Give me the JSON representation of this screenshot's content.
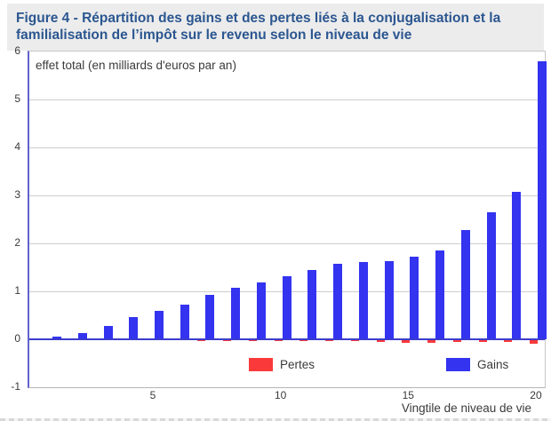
{
  "title": "Figure 4 - Répartition des gains et des pertes liés à la conjugalisation et la familialisation de l’impôt sur le revenu selon le niveau de vie",
  "chart_data": {
    "type": "bar",
    "annotation": "effet total (en milliards d'euros par an)",
    "xlabel": "Vingtile de niveau de vie",
    "categories": [
      1,
      2,
      3,
      4,
      5,
      6,
      7,
      8,
      9,
      10,
      11,
      12,
      13,
      14,
      15,
      16,
      17,
      18,
      19,
      20
    ],
    "series": [
      {
        "name": "Pertes",
        "color": "#fa3a3a",
        "values": [
          -0.01,
          -0.01,
          -0.02,
          -0.02,
          -0.02,
          -0.02,
          -0.03,
          -0.03,
          -0.03,
          -0.03,
          -0.03,
          -0.04,
          -0.04,
          -0.06,
          -0.08,
          -0.07,
          -0.05,
          -0.05,
          -0.06,
          -0.09
        ]
      },
      {
        "name": "Gains",
        "color": "#3333f0",
        "values": [
          0.05,
          0.13,
          0.28,
          0.47,
          0.6,
          0.72,
          0.93,
          1.07,
          1.18,
          1.32,
          1.44,
          1.57,
          1.61,
          1.63,
          1.73,
          1.85,
          2.28,
          2.65,
          3.08,
          5.79
        ]
      }
    ],
    "ylim": [
      -1,
      6
    ],
    "yticks": [
      6,
      5,
      4,
      3,
      2,
      1,
      0,
      -1
    ],
    "xticks": [
      5,
      10,
      15,
      20
    ],
    "grid": true,
    "legend_position": "bottom-inside"
  },
  "colors": {
    "title": "#2b5690",
    "title_background": "#ececec",
    "gains_bar": "#3333f0",
    "pertes_bar": "#fa3a3a",
    "axis_line": "#6262ce",
    "zero_line": "#3c3ccc",
    "gridline": "#cdcdcd",
    "text": "#3a3a3a"
  }
}
